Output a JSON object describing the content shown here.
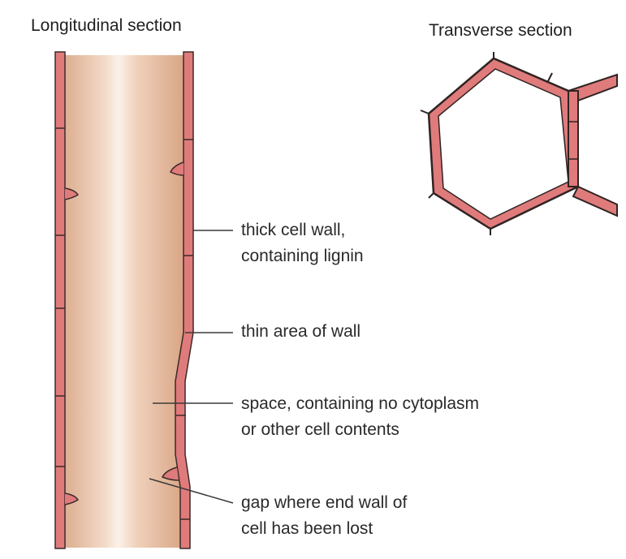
{
  "titles": {
    "longitudinal": "Longitudinal section",
    "transverse": "Transverse section"
  },
  "labels": {
    "thick_wall": [
      "thick cell wall,",
      "containing lignin"
    ],
    "thin_area": [
      "thin area of wall"
    ],
    "space": [
      "space, containing no cytoplasm",
      "or other cell contents"
    ],
    "gap": [
      "gap where end wall of",
      "cell has been lost"
    ]
  },
  "colors": {
    "wall": "#e07b7b",
    "wall_outline": "#3a2a2a",
    "lumen": "#e8c5aa",
    "lumen_highlight": "#fbf1e8"
  }
}
